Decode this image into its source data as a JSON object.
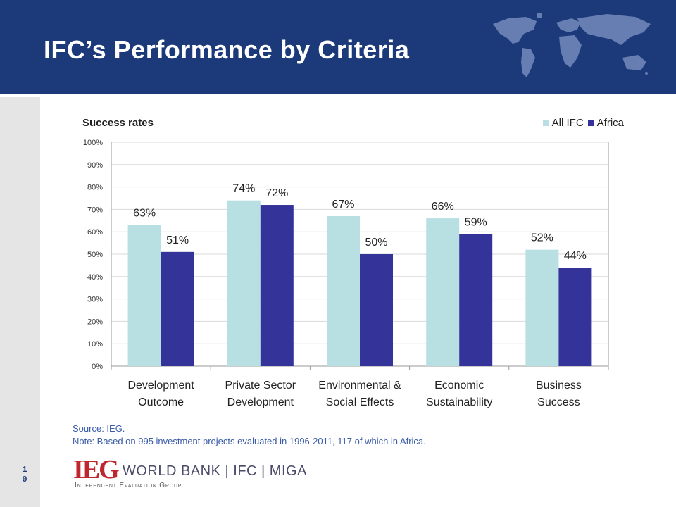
{
  "header": {
    "title": "IFC’s Performance by Criteria"
  },
  "page_number": "10",
  "colors": {
    "header_bg": "#1c3a7a",
    "all_ifc": "#b8dfe2",
    "africa": "#333399",
    "notes_text": "#3a5ba8",
    "logo_red": "#c0262d"
  },
  "chart_data": {
    "type": "bar",
    "title": "Success rates",
    "categories": [
      [
        "Development",
        "Outcome"
      ],
      [
        "Private Sector",
        "Development"
      ],
      [
        "Environmental &",
        "Social Effects"
      ],
      [
        "Economic",
        "Sustainability"
      ],
      [
        "Business",
        "Success"
      ]
    ],
    "series": [
      {
        "name": "All IFC",
        "values": [
          63,
          74,
          67,
          66,
          52
        ],
        "labels": [
          "63%",
          "74%",
          "67%",
          "66%",
          "52%"
        ],
        "color": "#b8dfe2"
      },
      {
        "name": "Africa",
        "values": [
          51,
          72,
          50,
          59,
          44
        ],
        "labels": [
          "51%",
          "72%",
          "50%",
          "59%",
          "44%"
        ],
        "color": "#333399"
      }
    ],
    "yticks": [
      "0%",
      "10%",
      "20%",
      "30%",
      "40%",
      "50%",
      "60%",
      "70%",
      "80%",
      "90%",
      "100%"
    ],
    "ylim": [
      0,
      100
    ],
    "grid": true,
    "legend_position": "top-right"
  },
  "notes": {
    "source": "Source: IEG.",
    "note": "Note: Based on 995 investment projects evaluated in 1996-2011, 117 of which in Africa."
  },
  "logo": {
    "ieg": "IEG",
    "wordmark": "WORLD BANK | IFC | MIGA",
    "subtitle": "Independent Evaluation Group"
  }
}
